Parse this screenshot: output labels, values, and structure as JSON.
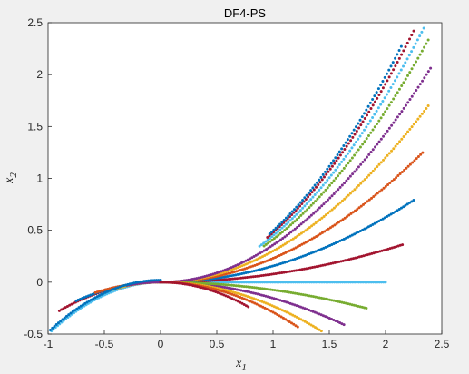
{
  "chart_data": {
    "type": "scatter",
    "title": "DF4-PS",
    "xlabel": "x",
    "xlabel_sub": "1",
    "ylabel": "x",
    "ylabel_sub": "2",
    "xlim": [
      -1,
      2.5
    ],
    "ylim": [
      -0.5,
      2.5
    ],
    "xticks": [
      "-1",
      "-0.5",
      "0",
      "0.5",
      "1",
      "1.5",
      "2",
      "2.5"
    ],
    "yticks": [
      "-0.5",
      "0",
      "0.5",
      "1",
      "1.5",
      "2",
      "2.5"
    ],
    "grid": false,
    "marker_style": "dots",
    "series": [
      {
        "color": "#4DBEEE",
        "x": [
          -1,
          0,
          2
        ],
        "y": [
          -0.5,
          0,
          0
        ],
        "segments": [
          {
            "x_start": -0.95,
            "x_end": 2.0,
            "curve": "parabola_then_flat"
          }
        ]
      },
      {
        "color": "#A2142F",
        "x": [
          -0.9,
          0.15,
          2.15
        ],
        "y": [
          -0.27,
          0.0,
          0.36
        ]
      },
      {
        "color": "#0072BD",
        "x": [
          -0.75,
          0.0,
          2.25
        ],
        "y": [
          -0.18,
          0.0,
          0.79
        ]
      },
      {
        "color": "#D95319",
        "x": [
          -0.58,
          0.0,
          2.33
        ],
        "y": [
          -0.1,
          0.0,
          1.25
        ]
      },
      {
        "color": "#EDB120",
        "x": [
          -0.42,
          0.0,
          2.38
        ],
        "y": [
          -0.07,
          0.0,
          1.7
        ]
      },
      {
        "color": "#7E2F8E",
        "x": [
          -0.3,
          0.0,
          2.4
        ],
        "y": [
          -0.03,
          0.0,
          2.06
        ]
      },
      {
        "color": "#77AC30",
        "x": [
          0.92,
          1.5,
          2.38
        ],
        "y": [
          0.3,
          0.9,
          2.33
        ]
      },
      {
        "color": "#4DBEEE",
        "x": [
          0.88,
          1.5,
          2.34
        ],
        "y": [
          0.35,
          1.1,
          2.45
        ]
      },
      {
        "color": "#A2142F",
        "x": [
          0.95,
          1.6,
          2.25
        ],
        "y": [
          0.45,
          1.4,
          2.42
        ]
      },
      {
        "color": "#0072BD",
        "x": [
          0.97,
          1.6,
          2.14
        ],
        "y": [
          0.5,
          1.55,
          2.27
        ]
      },
      {
        "color": "#7E2F8E",
        "x": [
          0.15,
          0.6,
          1.63
        ],
        "y": [
          0.0,
          -0.12,
          -0.41
        ]
      },
      {
        "color": "#77AC30",
        "x": [
          0.2,
          0.9,
          1.83
        ],
        "y": [
          0.0,
          -0.12,
          -0.25
        ]
      },
      {
        "color": "#EDB120",
        "x": [
          0.1,
          0.8,
          1.43
        ],
        "y": [
          0.0,
          -0.2,
          -0.47
        ]
      },
      {
        "color": "#D95319",
        "x": [
          0.05,
          0.7,
          1.22
        ],
        "y": [
          0.0,
          -0.22,
          -0.43
        ]
      },
      {
        "color": "#A2142F",
        "x": [
          0.0,
          0.4,
          0.78
        ],
        "y": [
          0.0,
          -0.1,
          -0.24
        ]
      }
    ]
  }
}
